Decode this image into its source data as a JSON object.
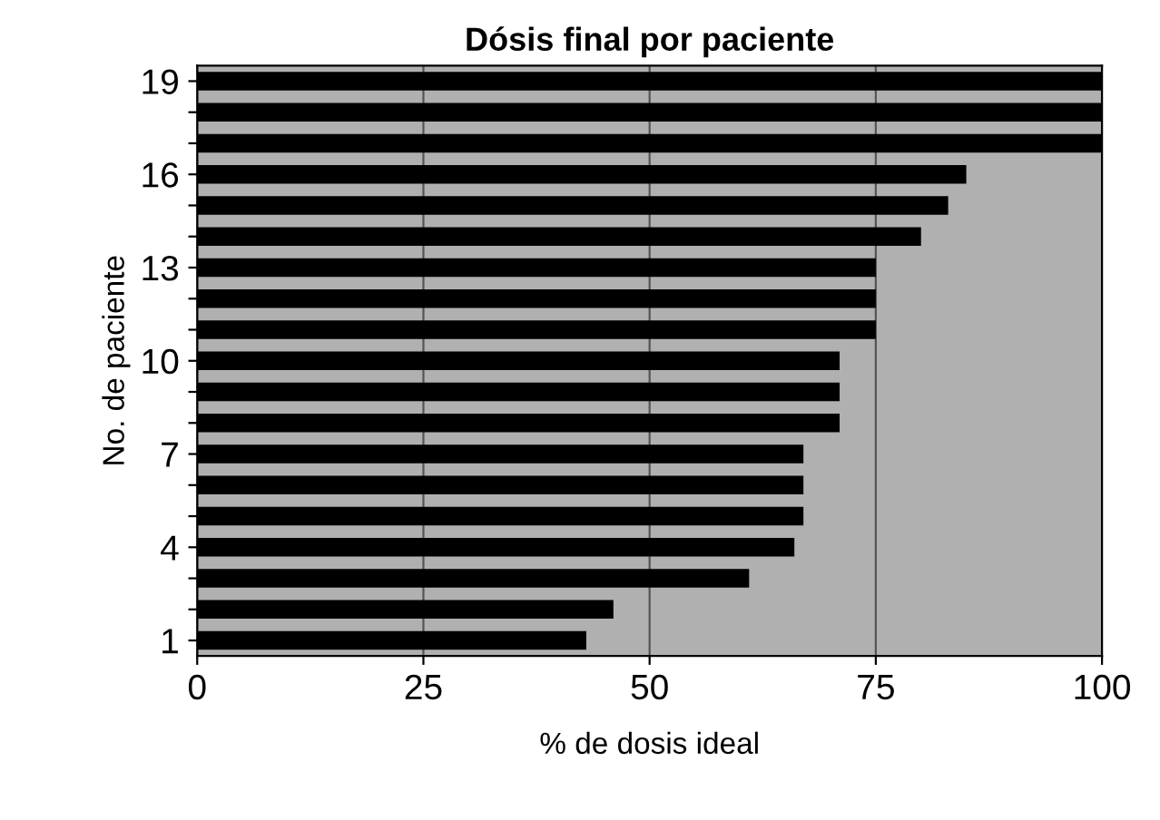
{
  "chart_data": {
    "type": "bar",
    "orientation": "horizontal",
    "title": "Dósis final por paciente",
    "xlabel": "% de dosis ideal",
    "ylabel": "No. de paciente",
    "categories": [
      "19",
      null,
      null,
      "16",
      null,
      null,
      "13",
      null,
      null,
      "10",
      null,
      null,
      "7",
      null,
      null,
      "4",
      null,
      null,
      "1"
    ],
    "values": [
      100,
      100,
      100,
      85,
      83,
      80,
      75,
      75,
      75,
      71,
      71,
      71,
      67,
      67,
      67,
      66,
      61,
      46,
      43
    ],
    "color": "#000000",
    "xlim": [
      0,
      100
    ],
    "xticks": [
      0,
      25,
      50,
      75,
      100
    ],
    "grid": "x"
  }
}
